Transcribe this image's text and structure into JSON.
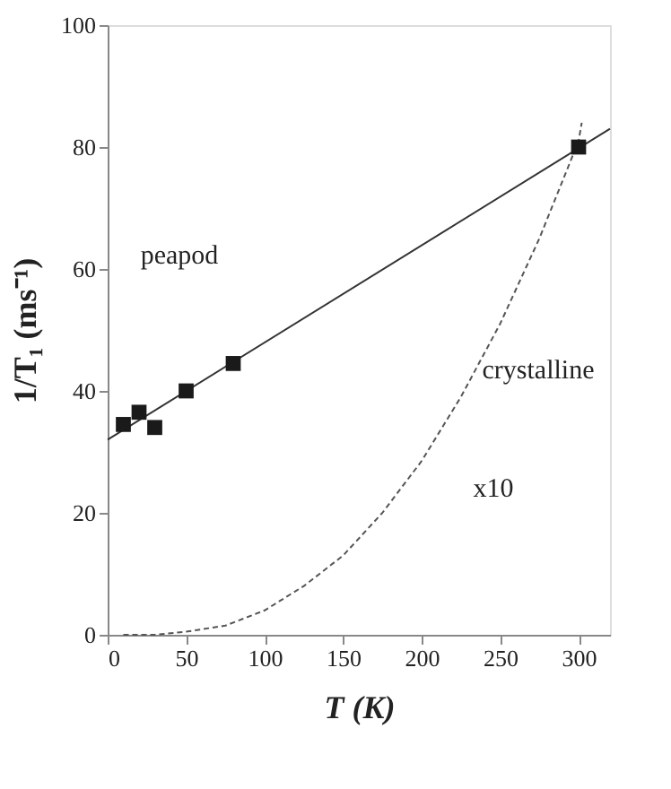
{
  "chart_data": {
    "type": "scatter",
    "xlabel": "T (K)",
    "ylabel": "1/T₁ (ms⁻¹)",
    "xlim": [
      0,
      320
    ],
    "ylim": [
      0,
      100
    ],
    "xticks": [
      0,
      50,
      100,
      150,
      200,
      250,
      300
    ],
    "yticks": [
      0,
      20,
      40,
      60,
      80,
      100
    ],
    "grid": false,
    "series": [
      {
        "marker": "square",
        "color": "#1a1a1a",
        "x": [
          10,
          20,
          30,
          50,
          80,
          300
        ],
        "values": [
          34.5,
          36.5,
          34,
          40,
          44.5,
          80
        ]
      },
      {
        "type": "line",
        "line_style": "solid",
        "color": "#333333",
        "x": [
          0,
          320
        ],
        "values": [
          32,
          83
        ]
      },
      {
        "type": "line",
        "line_style": "dashed",
        "color": "#555555",
        "x": [
          10,
          30,
          50,
          75,
          100,
          125,
          150,
          175,
          200,
          225,
          250,
          275,
          300,
          302
        ],
        "values": [
          0,
          0,
          0.5,
          1.5,
          4,
          8,
          13,
          20,
          28.5,
          39,
          51,
          65,
          81,
          84
        ]
      }
    ],
    "annotations": [
      "peapod",
      "crystalline",
      "x10"
    ]
  }
}
